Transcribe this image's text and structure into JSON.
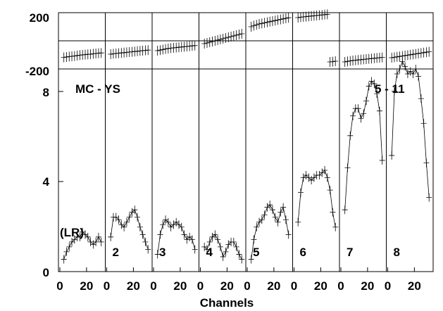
{
  "chart_data": {
    "type": "scatter",
    "layout": "8 panels (columns), each with a small top strip and a large bottom plot",
    "x_tick_labels": [
      "0",
      "20"
    ],
    "xlabel": "Channels",
    "xlim": [
      0,
      33
    ],
    "top": {
      "y_tick_labels": [
        "200",
        "-200"
      ],
      "ylim": [
        -200,
        200
      ],
      "reference_line": 0
    },
    "bottom": {
      "y_tick_labels": [
        "0",
        "4",
        "8"
      ],
      "ylim": [
        0,
        8.2
      ]
    },
    "annotations": [
      "MC - YS",
      "5 - 11"
    ],
    "panels": [
      {
        "label": "(LR)",
        "x": [
          3,
          5,
          7,
          9,
          11,
          13,
          15,
          17,
          19,
          21,
          23,
          25,
          27,
          29,
          31
        ],
        "bottom": [
          0.5,
          0.8,
          1.0,
          1.2,
          1.3,
          1.4,
          1.4,
          1.6,
          1.5,
          1.4,
          1.2,
          1.1,
          1.2,
          1.4,
          1.2
        ],
        "top": [
          -118,
          -115,
          -112,
          -110,
          -108,
          -105,
          -102,
          -100,
          -98,
          -96,
          -95,
          -92,
          -90,
          -88,
          -86
        ]
      },
      {
        "label": "2",
        "x": [
          3,
          5,
          7,
          9,
          11,
          13,
          15,
          17,
          19,
          21,
          23,
          25,
          27,
          29,
          31
        ],
        "bottom": [
          1.4,
          2.2,
          2.2,
          2.1,
          1.9,
          1.8,
          2.0,
          2.2,
          2.4,
          2.5,
          2.2,
          1.8,
          1.5,
          1.2,
          0.9
        ],
        "top": [
          -95,
          -92,
          -90,
          -88,
          -86,
          -84,
          -82,
          -80,
          -78,
          -76,
          -74,
          -72,
          -70,
          -68,
          -66
        ]
      },
      {
        "label": "3",
        "x": [
          3,
          5,
          7,
          9,
          11,
          13,
          15,
          17,
          19,
          21,
          23,
          25,
          27,
          29,
          31
        ],
        "bottom": [
          0.7,
          1.5,
          1.9,
          2.1,
          2.0,
          1.8,
          1.9,
          2.0,
          1.9,
          1.8,
          1.5,
          1.3,
          1.4,
          1.3,
          0.9
        ],
        "top": [
          -70,
          -66,
          -62,
          -58,
          -55,
          -52,
          -50,
          -48,
          -46,
          -44,
          -42,
          -40,
          -38,
          -36,
          -34
        ]
      },
      {
        "label": "4",
        "x": [
          3,
          5,
          7,
          9,
          11,
          13,
          15,
          17,
          19,
          21,
          23,
          25,
          27,
          29,
          31
        ],
        "bottom": [
          1.0,
          0.9,
          1.2,
          1.4,
          1.5,
          1.3,
          1.0,
          0.6,
          0.8,
          1.1,
          1.2,
          1.2,
          1.0,
          0.7,
          0.5
        ],
        "top": [
          -20,
          -15,
          -10,
          -5,
          0,
          5,
          10,
          15,
          20,
          25,
          30,
          35,
          40,
          45,
          50
        ]
      },
      {
        "label": "5",
        "x": [
          3,
          5,
          7,
          9,
          11,
          13,
          15,
          17,
          19,
          21,
          23,
          25,
          27,
          29,
          31
        ],
        "bottom": [
          0.5,
          1.3,
          1.8,
          2.0,
          2.1,
          2.3,
          2.6,
          2.7,
          2.5,
          2.2,
          2.0,
          2.4,
          2.6,
          2.1,
          1.5
        ],
        "top": [
          100,
          108,
          114,
          120,
          124,
          128,
          132,
          136,
          140,
          144,
          148,
          152,
          156,
          160,
          164
        ]
      },
      {
        "label": "6",
        "x": [
          3,
          5,
          7,
          9,
          11,
          13,
          15,
          17,
          19,
          21,
          23,
          25,
          27,
          29,
          31
        ],
        "bottom": [
          2.0,
          3.2,
          3.8,
          3.9,
          3.8,
          3.7,
          3.8,
          3.9,
          3.9,
          4.0,
          4.1,
          3.8,
          3.3,
          2.4,
          1.8
        ],
        "top": [
          165,
          168,
          170,
          172,
          174,
          176,
          178,
          180,
          182,
          184,
          186,
          188,
          -150,
          -148,
          -145
        ]
      },
      {
        "label": "7",
        "x": [
          3,
          5,
          7,
          9,
          11,
          13,
          15,
          17,
          19,
          21,
          23,
          25,
          27,
          29,
          31
        ],
        "bottom": [
          2.5,
          4.2,
          5.5,
          6.3,
          6.6,
          6.6,
          6.2,
          6.4,
          6.9,
          7.5,
          7.7,
          7.6,
          7.2,
          6.5,
          4.5
        ],
        "top": [
          -150,
          -146,
          -143,
          -140,
          -138,
          -136,
          -134,
          -132,
          -130,
          -128,
          -126,
          -124,
          -122,
          -120,
          -118
        ]
      },
      {
        "label": "8",
        "x": [
          3,
          5,
          7,
          9,
          11,
          13,
          15,
          17,
          19,
          21,
          23,
          25,
          27,
          29,
          31
        ],
        "bottom": [
          4.7,
          7.3,
          8.0,
          8.2,
          8.5,
          8.3,
          8.0,
          8.1,
          8.0,
          8.2,
          7.9,
          7.0,
          6.0,
          4.4,
          3.0
        ],
        "top": [
          -120,
          -117,
          -114,
          -111,
          -108,
          -105,
          -102,
          -99,
          -96,
          -93,
          -90,
          -87,
          -84,
          -81,
          -78
        ]
      }
    ]
  }
}
